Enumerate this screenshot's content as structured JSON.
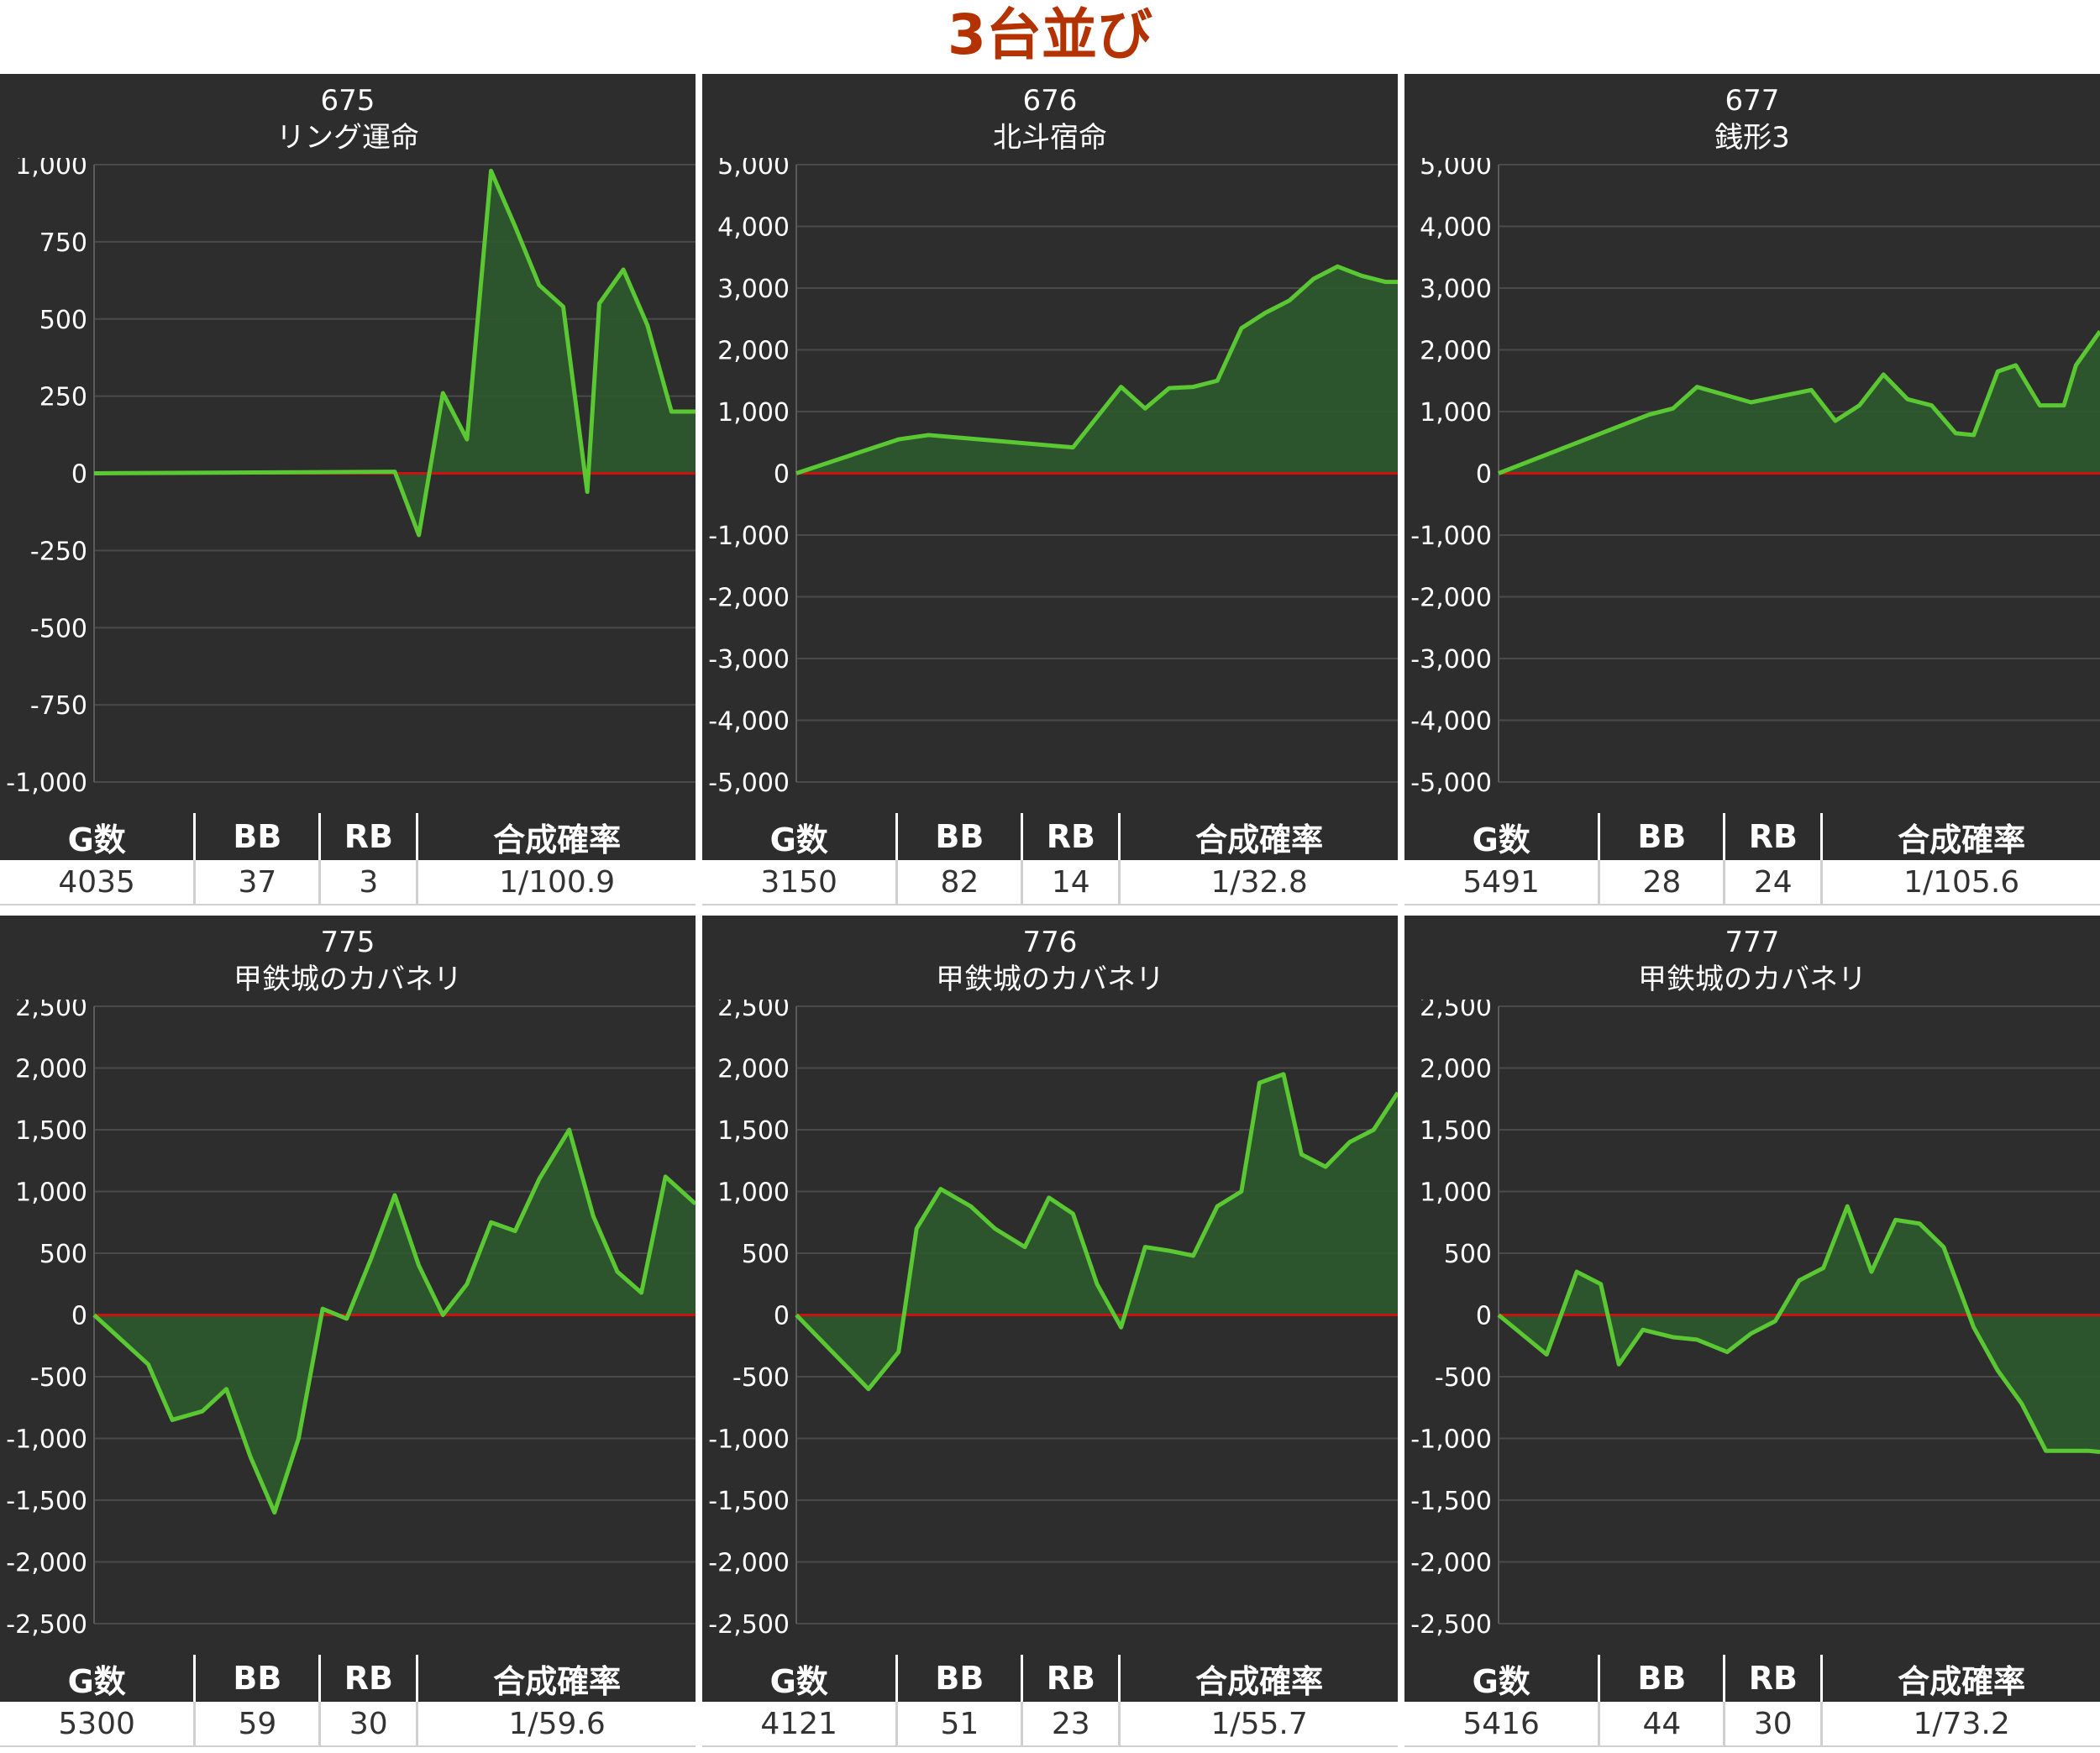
{
  "title": "3台並び",
  "stat_headers": {
    "g": "G数",
    "bb": "BB",
    "rb": "RB",
    "prob": "合成確率"
  },
  "colors": {
    "line": "#5ac832",
    "zero_line": "#cc1111",
    "fill": "#2d5a2d",
    "panel": "#2d2d2d",
    "title": "#b33200"
  },
  "machines": [
    {
      "number": "675",
      "name": "リング運命",
      "stats": {
        "g": "4035",
        "bb": "37",
        "rb": "3",
        "prob": "1/100.9"
      }
    },
    {
      "number": "676",
      "name": "北斗宿命",
      "stats": {
        "g": "3150",
        "bb": "82",
        "rb": "14",
        "prob": "1/32.8"
      }
    },
    {
      "number": "677",
      "name": "銭形3",
      "stats": {
        "g": "5491",
        "bb": "28",
        "rb": "24",
        "prob": "1/105.6"
      }
    },
    {
      "number": "775",
      "name": "甲鉄城のカバネリ",
      "stats": {
        "g": "5300",
        "bb": "59",
        "rb": "30",
        "prob": "1/59.6"
      }
    },
    {
      "number": "776",
      "name": "甲鉄城のカバネリ",
      "stats": {
        "g": "4121",
        "bb": "51",
        "rb": "23",
        "prob": "1/55.7"
      }
    },
    {
      "number": "777",
      "name": "甲鉄城のカバネリ",
      "stats": {
        "g": "5416",
        "bb": "44",
        "rb": "30",
        "prob": "1/73.2"
      }
    }
  ],
  "chart_data": [
    {
      "type": "area",
      "title": "675 リング運命",
      "ylim": [
        -1000,
        1000
      ],
      "yticks": [
        "1,000",
        "750",
        "500",
        "250",
        "0",
        "-250",
        "-500",
        "-750",
        "-1,000"
      ],
      "x": [
        0,
        0.5,
        0.54,
        0.58,
        0.62,
        0.66,
        0.7,
        0.74,
        0.78,
        0.82,
        0.84,
        0.88,
        0.92,
        0.96,
        1
      ],
      "y": [
        0,
        5,
        -200,
        260,
        110,
        980,
        800,
        610,
        540,
        -60,
        550,
        660,
        480,
        200,
        200
      ]
    },
    {
      "type": "area",
      "title": "676 北斗宿命",
      "ylim": [
        -5000,
        5000
      ],
      "yticks": [
        "5,000",
        "4,000",
        "3,000",
        "2,000",
        "1,000",
        "0",
        "-1,000",
        "-2,000",
        "-3,000",
        "-4,000",
        "-5,000"
      ],
      "x": [
        0,
        0.17,
        0.22,
        0.46,
        0.54,
        0.58,
        0.62,
        0.66,
        0.7,
        0.74,
        0.78,
        0.82,
        0.86,
        0.9,
        0.94,
        0.98,
        1
      ],
      "y": [
        0,
        550,
        620,
        420,
        1400,
        1050,
        1380,
        1400,
        1500,
        2350,
        2600,
        2800,
        3150,
        3350,
        3200,
        3100,
        3100
      ]
    },
    {
      "type": "area",
      "title": "677 銭形3",
      "ylim": [
        -5000,
        5000
      ],
      "yticks": [
        "5,000",
        "4,000",
        "3,000",
        "2,000",
        "1,000",
        "0",
        "-1,000",
        "-2,000",
        "-3,000",
        "-4,000",
        "-5,000"
      ],
      "x": [
        0,
        0.25,
        0.29,
        0.33,
        0.42,
        0.52,
        0.56,
        0.6,
        0.64,
        0.68,
        0.72,
        0.76,
        0.79,
        0.83,
        0.86,
        0.9,
        0.94,
        0.96,
        1
      ],
      "y": [
        0,
        950,
        1050,
        1400,
        1150,
        1350,
        850,
        1100,
        1600,
        1200,
        1100,
        650,
        620,
        1650,
        1750,
        1100,
        1100,
        1750,
        2300
      ]
    },
    {
      "type": "area",
      "title": "775 甲鉄城のカバネリ",
      "ylim": [
        -2500,
        2500
      ],
      "yticks": [
        "2,500",
        "2,000",
        "1,500",
        "1,000",
        "500",
        "0",
        "-500",
        "-1,000",
        "-1,500",
        "-2,000",
        "-2,500"
      ],
      "x": [
        0,
        0.09,
        0.13,
        0.18,
        0.22,
        0.26,
        0.3,
        0.34,
        0.38,
        0.42,
        0.46,
        0.5,
        0.54,
        0.58,
        0.62,
        0.66,
        0.7,
        0.74,
        0.79,
        0.83,
        0.87,
        0.91,
        0.95,
        1
      ],
      "y": [
        0,
        -400,
        -850,
        -780,
        -600,
        -1150,
        -1600,
        -1000,
        50,
        -30,
        450,
        970,
        400,
        0,
        250,
        750,
        680,
        1100,
        1500,
        800,
        350,
        180,
        1120,
        900
      ]
    },
    {
      "type": "area",
      "title": "776 甲鉄城のカバネリ",
      "ylim": [
        -2500,
        2500
      ],
      "yticks": [
        "2,500",
        "2,000",
        "1,500",
        "1,000",
        "500",
        "0",
        "-500",
        "-1,000",
        "-1,500",
        "-2,000",
        "-2,500"
      ],
      "x": [
        0,
        0.12,
        0.17,
        0.2,
        0.24,
        0.29,
        0.33,
        0.38,
        0.42,
        0.46,
        0.5,
        0.54,
        0.58,
        0.62,
        0.66,
        0.7,
        0.74,
        0.77,
        0.81,
        0.84,
        0.88,
        0.92,
        0.96,
        1
      ],
      "y": [
        0,
        -600,
        -300,
        700,
        1020,
        880,
        700,
        550,
        950,
        820,
        250,
        -100,
        550,
        520,
        480,
        880,
        1000,
        1880,
        1950,
        1300,
        1200,
        1400,
        1500,
        1800
      ]
    },
    {
      "type": "area",
      "title": "777 甲鉄城のカバネリ",
      "ylim": [
        -2500,
        2500
      ],
      "yticks": [
        "2,500",
        "2,000",
        "1,500",
        "1,000",
        "500",
        "0",
        "-500",
        "-1,000",
        "-1,500",
        "-2,000",
        "-2,500"
      ],
      "x": [
        0,
        0.08,
        0.13,
        0.17,
        0.2,
        0.24,
        0.29,
        0.33,
        0.38,
        0.42,
        0.46,
        0.5,
        0.54,
        0.58,
        0.62,
        0.66,
        0.7,
        0.74,
        0.79,
        0.83,
        0.87,
        0.91,
        0.95,
        0.98,
        1
      ],
      "y": [
        0,
        -320,
        350,
        250,
        -400,
        -120,
        -180,
        -200,
        -300,
        -150,
        -50,
        280,
        380,
        880,
        350,
        770,
        740,
        550,
        -100,
        -450,
        -720,
        -1100,
        -1100,
        -1100,
        -1110
      ]
    }
  ]
}
